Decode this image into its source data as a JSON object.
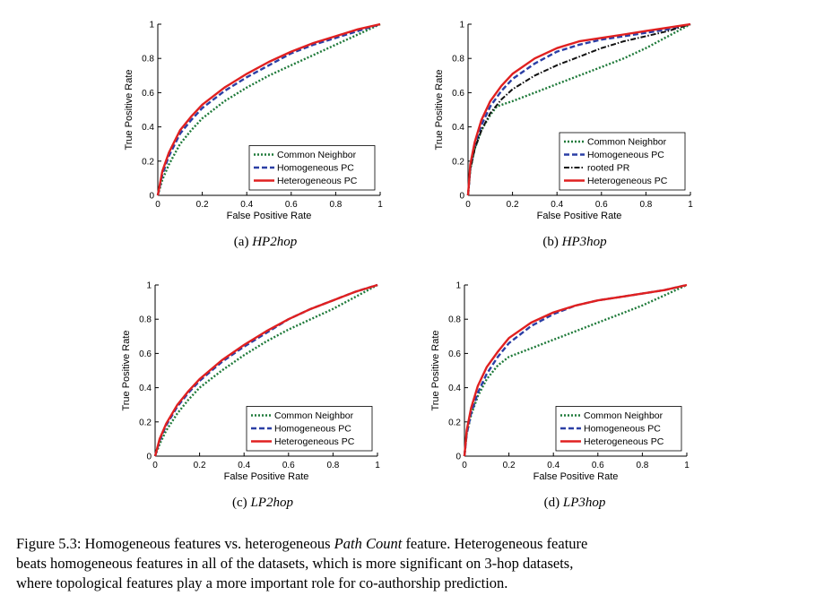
{
  "chart_data": [
    {
      "type": "line",
      "xlabel": "False Positive Rate",
      "ylabel": "True Positive Rate",
      "xlim": [
        0,
        1
      ],
      "ylim": [
        0,
        1
      ],
      "xticks": [
        "0",
        "0.2",
        "0.4",
        "0.6",
        "0.8",
        "1"
      ],
      "yticks": [
        "0",
        "0.2",
        "0.4",
        "0.6",
        "0.8",
        "1"
      ],
      "grid": false,
      "legend_position": "bottom-right",
      "caption_label": "(a)",
      "caption_name": "HP2hop",
      "series": [
        {
          "name": "Common Neighbor",
          "color": "#1f7a3a",
          "style": "dotted",
          "x": [
            0,
            0.02,
            0.05,
            0.1,
            0.15,
            0.2,
            0.3,
            0.4,
            0.5,
            0.6,
            0.7,
            0.8,
            0.9,
            1.0
          ],
          "y": [
            0,
            0.09,
            0.18,
            0.3,
            0.38,
            0.45,
            0.55,
            0.63,
            0.7,
            0.76,
            0.82,
            0.88,
            0.94,
            1.0
          ]
        },
        {
          "name": "Homogeneous PC",
          "color": "#2b3fa5",
          "style": "dashed",
          "x": [
            0,
            0.02,
            0.05,
            0.1,
            0.15,
            0.2,
            0.3,
            0.4,
            0.5,
            0.6,
            0.7,
            0.8,
            0.9,
            1.0
          ],
          "y": [
            0,
            0.12,
            0.23,
            0.36,
            0.44,
            0.51,
            0.61,
            0.69,
            0.76,
            0.83,
            0.88,
            0.92,
            0.96,
            1.0
          ]
        },
        {
          "name": "Heterogeneous PC",
          "color": "#e02020",
          "style": "solid",
          "x": [
            0,
            0.02,
            0.05,
            0.1,
            0.15,
            0.2,
            0.3,
            0.4,
            0.5,
            0.6,
            0.7,
            0.8,
            0.9,
            1.0
          ],
          "y": [
            0,
            0.14,
            0.25,
            0.38,
            0.46,
            0.53,
            0.63,
            0.71,
            0.78,
            0.84,
            0.89,
            0.93,
            0.97,
            1.0
          ]
        }
      ]
    },
    {
      "type": "line",
      "xlabel": "False Positive Rate",
      "ylabel": "True Positive Rate",
      "xlim": [
        0,
        1
      ],
      "ylim": [
        0,
        1
      ],
      "xticks": [
        "0",
        "0.2",
        "0.4",
        "0.6",
        "0.8",
        "1"
      ],
      "yticks": [
        "0",
        "0.2",
        "0.4",
        "0.6",
        "0.8",
        "1"
      ],
      "grid": false,
      "legend_position": "bottom-right",
      "caption_label": "(b)",
      "caption_name": "HP3hop",
      "series": [
        {
          "name": "Common Neighbor",
          "color": "#1f7a3a",
          "style": "dotted",
          "x": [
            0,
            0.01,
            0.03,
            0.06,
            0.1,
            0.13,
            0.2,
            0.3,
            0.4,
            0.5,
            0.6,
            0.7,
            0.8,
            0.9,
            1.0
          ],
          "y": [
            0,
            0.15,
            0.27,
            0.38,
            0.47,
            0.52,
            0.55,
            0.6,
            0.65,
            0.7,
            0.75,
            0.8,
            0.86,
            0.93,
            1.0
          ]
        },
        {
          "name": "Homogeneous PC",
          "color": "#2b3fa5",
          "style": "dashed",
          "x": [
            0,
            0.01,
            0.03,
            0.06,
            0.1,
            0.15,
            0.2,
            0.3,
            0.4,
            0.5,
            0.6,
            0.7,
            0.8,
            0.9,
            1.0
          ],
          "y": [
            0,
            0.16,
            0.29,
            0.41,
            0.52,
            0.61,
            0.68,
            0.77,
            0.84,
            0.88,
            0.91,
            0.93,
            0.95,
            0.97,
            1.0
          ]
        },
        {
          "name": "rooted PR",
          "color": "#111111",
          "style": "dashdot",
          "x": [
            0,
            0.01,
            0.03,
            0.06,
            0.1,
            0.15,
            0.2,
            0.3,
            0.4,
            0.5,
            0.6,
            0.7,
            0.8,
            0.9,
            1.0
          ],
          "y": [
            0,
            0.15,
            0.27,
            0.38,
            0.48,
            0.56,
            0.62,
            0.7,
            0.76,
            0.81,
            0.86,
            0.9,
            0.93,
            0.96,
            1.0
          ]
        },
        {
          "name": "Heterogeneous PC",
          "color": "#e02020",
          "style": "solid",
          "x": [
            0,
            0.01,
            0.03,
            0.06,
            0.1,
            0.15,
            0.2,
            0.3,
            0.4,
            0.5,
            0.6,
            0.7,
            0.8,
            0.9,
            1.0
          ],
          "y": [
            0,
            0.18,
            0.31,
            0.44,
            0.55,
            0.64,
            0.71,
            0.8,
            0.86,
            0.9,
            0.92,
            0.94,
            0.96,
            0.98,
            1.0
          ]
        }
      ]
    },
    {
      "type": "line",
      "xlabel": "False Positive Rate",
      "ylabel": "True Positive Rate",
      "xlim": [
        0,
        1
      ],
      "ylim": [
        0,
        1
      ],
      "xticks": [
        "0",
        "0.2",
        "0.4",
        "0.6",
        "0.8",
        "1"
      ],
      "yticks": [
        "0",
        "0.2",
        "0.4",
        "0.6",
        "0.8",
        "1"
      ],
      "grid": false,
      "legend_position": "bottom-right",
      "caption_label": "(c)",
      "caption_name": "LP2hop",
      "series": [
        {
          "name": "Common Neighbor",
          "color": "#1f7a3a",
          "style": "dotted",
          "x": [
            0,
            0.02,
            0.05,
            0.1,
            0.15,
            0.2,
            0.3,
            0.4,
            0.5,
            0.6,
            0.7,
            0.8,
            0.9,
            1.0
          ],
          "y": [
            0,
            0.07,
            0.15,
            0.25,
            0.33,
            0.4,
            0.5,
            0.59,
            0.67,
            0.74,
            0.8,
            0.86,
            0.93,
            1.0
          ]
        },
        {
          "name": "Homogeneous PC",
          "color": "#2b3fa5",
          "style": "dashed",
          "x": [
            0,
            0.02,
            0.05,
            0.1,
            0.15,
            0.2,
            0.3,
            0.4,
            0.5,
            0.6,
            0.7,
            0.8,
            0.9,
            1.0
          ],
          "y": [
            0,
            0.09,
            0.18,
            0.29,
            0.37,
            0.44,
            0.55,
            0.64,
            0.72,
            0.8,
            0.86,
            0.91,
            0.96,
            1.0
          ]
        },
        {
          "name": "Heterogeneous PC",
          "color": "#e02020",
          "style": "solid",
          "x": [
            0,
            0.02,
            0.05,
            0.1,
            0.15,
            0.2,
            0.3,
            0.4,
            0.5,
            0.6,
            0.7,
            0.8,
            0.9,
            1.0
          ],
          "y": [
            0,
            0.1,
            0.19,
            0.3,
            0.38,
            0.45,
            0.56,
            0.65,
            0.73,
            0.8,
            0.86,
            0.91,
            0.96,
            1.0
          ]
        }
      ]
    },
    {
      "type": "line",
      "xlabel": "False Positive Rate",
      "ylabel": "True Positive Rate",
      "xlim": [
        0,
        1
      ],
      "ylim": [
        0,
        1
      ],
      "xticks": [
        "0",
        "0.2",
        "0.4",
        "0.6",
        "0.8",
        "1"
      ],
      "yticks": [
        "0",
        "0.2",
        "0.4",
        "0.6",
        "0.8",
        "1"
      ],
      "grid": false,
      "legend_position": "bottom-right",
      "caption_label": "(d)",
      "caption_name": "LP3hop",
      "series": [
        {
          "name": "Common Neighbor",
          "color": "#1f7a3a",
          "style": "dotted",
          "x": [
            0,
            0.01,
            0.03,
            0.06,
            0.1,
            0.15,
            0.2,
            0.3,
            0.4,
            0.5,
            0.6,
            0.7,
            0.8,
            0.9,
            1.0
          ],
          "y": [
            0,
            0.13,
            0.24,
            0.35,
            0.45,
            0.53,
            0.58,
            0.63,
            0.68,
            0.73,
            0.78,
            0.83,
            0.88,
            0.94,
            1.0
          ]
        },
        {
          "name": "Homogeneous PC",
          "color": "#2b3fa5",
          "style": "dashed",
          "x": [
            0,
            0.01,
            0.03,
            0.06,
            0.1,
            0.15,
            0.2,
            0.3,
            0.4,
            0.5,
            0.6,
            0.7,
            0.8,
            0.9,
            1.0
          ],
          "y": [
            0,
            0.13,
            0.25,
            0.37,
            0.48,
            0.58,
            0.66,
            0.76,
            0.83,
            0.88,
            0.91,
            0.93,
            0.95,
            0.97,
            1.0
          ]
        },
        {
          "name": "Heterogeneous PC",
          "color": "#e02020",
          "style": "solid",
          "x": [
            0,
            0.01,
            0.03,
            0.06,
            0.1,
            0.15,
            0.2,
            0.3,
            0.4,
            0.5,
            0.6,
            0.7,
            0.8,
            0.9,
            1.0
          ],
          "y": [
            0,
            0.15,
            0.28,
            0.41,
            0.52,
            0.61,
            0.69,
            0.78,
            0.84,
            0.88,
            0.91,
            0.93,
            0.95,
            0.97,
            1.0
          ]
        }
      ]
    }
  ],
  "caption": {
    "line1_a": "Figure 5.3: Homogeneous features vs. heterogeneous ",
    "line1_it": "Path Count",
    "line1_b": " feature. Heterogeneous feature",
    "line2": "beats homogeneous features in all of the datasets, which is more significant on 3-hop datasets,",
    "line3": "where topological features play a more important role for co-authorship prediction."
  }
}
